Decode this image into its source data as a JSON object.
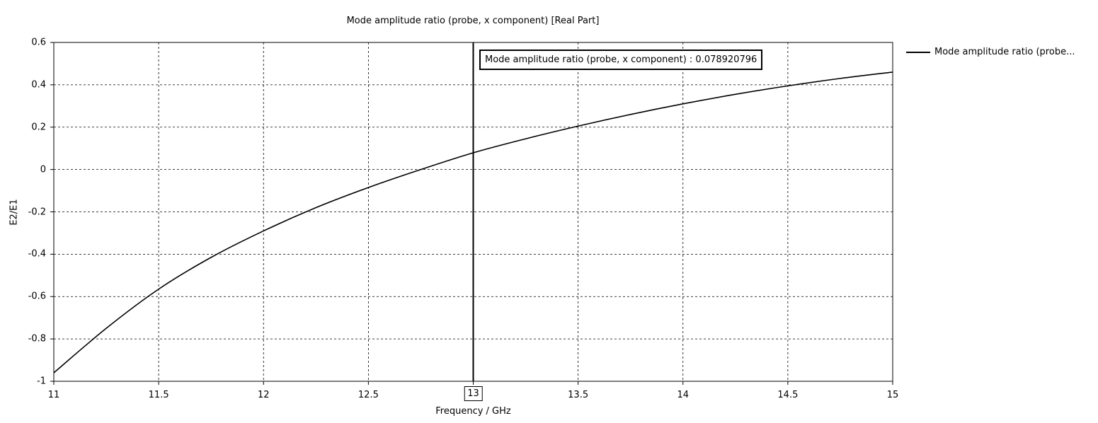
{
  "chart_data": {
    "type": "line",
    "title": "Mode amplitude ratio (probe, x component) [Real Part]",
    "xlabel": "Frequency / GHz",
    "ylabel": "E2/E1",
    "xlim": [
      11,
      15
    ],
    "ylim": [
      -1,
      0.6
    ],
    "x_ticks": [
      "11",
      "11.5",
      "12",
      "12.5",
      "13",
      "13.5",
      "14",
      "14.5",
      "15"
    ],
    "y_ticks": [
      "0.6",
      "0.4",
      "0.2",
      "0",
      "-0.2",
      "-0.4",
      "-0.6",
      "-0.8",
      "-1"
    ],
    "grid": true,
    "legend_position": "right",
    "series": [
      {
        "name": "Mode amplitude ratio (probe...",
        "color": "#000000",
        "x": [
          11,
          11.25,
          11.5,
          11.75,
          12,
          12.25,
          12.5,
          12.75,
          13,
          13.25,
          13.5,
          13.75,
          14,
          14.25,
          14.5,
          14.75,
          15
        ],
        "y": [
          -0.96,
          -0.75,
          -0.565,
          -0.415,
          -0.29,
          -0.18,
          -0.085,
          0.0,
          0.079,
          0.145,
          0.205,
          0.26,
          0.31,
          0.355,
          0.395,
          0.43,
          0.46
        ]
      }
    ],
    "marker": {
      "x": 13,
      "x_label": "13",
      "annotation": "Mode amplitude ratio (probe, x component) : 0.078920796"
    }
  }
}
